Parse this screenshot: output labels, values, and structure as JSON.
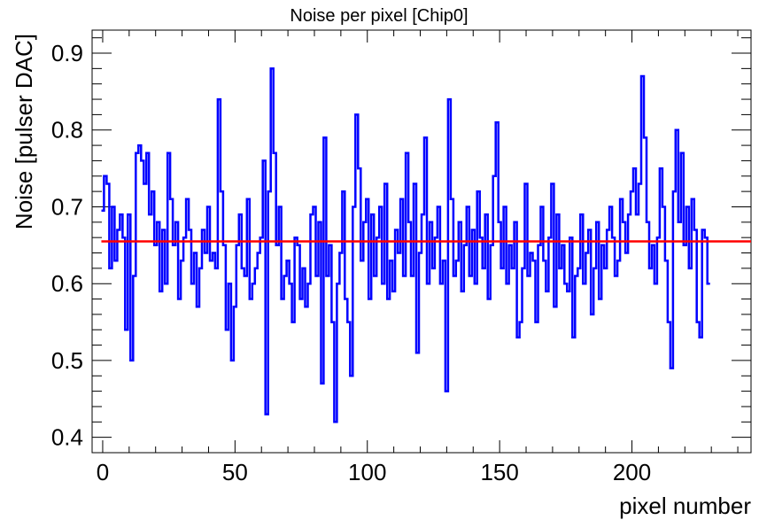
{
  "chart_data": {
    "type": "line",
    "title": "Noise per pixel [Chip0]",
    "xlabel": "pixel number",
    "ylabel": "Noise [pulser DAC]",
    "xlim": [
      -4,
      245
    ],
    "ylim": [
      0.38,
      0.93
    ],
    "xticks": [
      0,
      50,
      100,
      150,
      200
    ],
    "yticks": [
      0.4,
      0.5,
      0.6,
      0.7,
      0.8,
      0.9
    ],
    "grid": false,
    "series": [
      {
        "color": "#0000ff",
        "style": "step",
        "x_start": 0,
        "values": [
          0.695,
          0.74,
          0.73,
          0.62,
          0.7,
          0.63,
          0.67,
          0.69,
          0.66,
          0.54,
          0.69,
          0.5,
          0.61,
          0.77,
          0.78,
          0.76,
          0.73,
          0.77,
          0.69,
          0.72,
          0.65,
          0.68,
          0.59,
          0.67,
          0.6,
          0.77,
          0.71,
          0.65,
          0.68,
          0.58,
          0.63,
          0.66,
          0.71,
          0.67,
          0.6,
          0.64,
          0.57,
          0.62,
          0.67,
          0.64,
          0.7,
          0.63,
          0.64,
          0.62,
          0.84,
          0.72,
          0.65,
          0.54,
          0.6,
          0.5,
          0.57,
          0.65,
          0.69,
          0.62,
          0.61,
          0.71,
          0.58,
          0.6,
          0.62,
          0.64,
          0.66,
          0.76,
          0.43,
          0.72,
          0.88,
          0.77,
          0.65,
          0.7,
          0.58,
          0.61,
          0.63,
          0.6,
          0.55,
          0.66,
          0.65,
          0.58,
          0.62,
          0.57,
          0.6,
          0.69,
          0.7,
          0.61,
          0.68,
          0.47,
          0.79,
          0.61,
          0.65,
          0.55,
          0.42,
          0.6,
          0.64,
          0.72,
          0.58,
          0.55,
          0.48,
          0.7,
          0.82,
          0.75,
          0.63,
          0.68,
          0.71,
          0.58,
          0.69,
          0.61,
          0.66,
          0.7,
          0.6,
          0.73,
          0.58,
          0.63,
          0.59,
          0.67,
          0.64,
          0.71,
          0.61,
          0.77,
          0.68,
          0.61,
          0.73,
          0.51,
          0.64,
          0.69,
          0.79,
          0.6,
          0.68,
          0.62,
          0.66,
          0.7,
          0.6,
          0.63,
          0.46,
          0.84,
          0.71,
          0.61,
          0.63,
          0.68,
          0.59,
          0.65,
          0.7,
          0.61,
          0.67,
          0.6,
          0.72,
          0.66,
          0.62,
          0.69,
          0.58,
          0.65,
          0.74,
          0.81,
          0.68,
          0.62,
          0.7,
          0.6,
          0.65,
          0.62,
          0.68,
          0.53,
          0.55,
          0.62,
          0.73,
          0.61,
          0.64,
          0.63,
          0.55,
          0.65,
          0.7,
          0.63,
          0.59,
          0.66,
          0.73,
          0.57,
          0.69,
          0.62,
          0.65,
          0.6,
          0.59,
          0.66,
          0.53,
          0.61,
          0.62,
          0.69,
          0.6,
          0.64,
          0.67,
          0.56,
          0.62,
          0.68,
          0.58,
          0.65,
          0.62,
          0.67,
          0.7,
          0.66,
          0.61,
          0.63,
          0.71,
          0.68,
          0.64,
          0.69,
          0.72,
          0.75,
          0.69,
          0.73,
          0.87,
          0.79,
          0.68,
          0.62,
          0.65,
          0.6,
          0.66,
          0.75,
          0.7,
          0.63,
          0.55,
          0.49,
          0.72,
          0.8,
          0.68,
          0.77,
          0.65,
          0.7,
          0.62,
          0.71,
          0.67,
          0.55,
          0.53,
          0.67,
          0.66,
          0.6
        ]
      }
    ],
    "reference_line": {
      "y": 0.655,
      "color": "#ff0000"
    }
  }
}
